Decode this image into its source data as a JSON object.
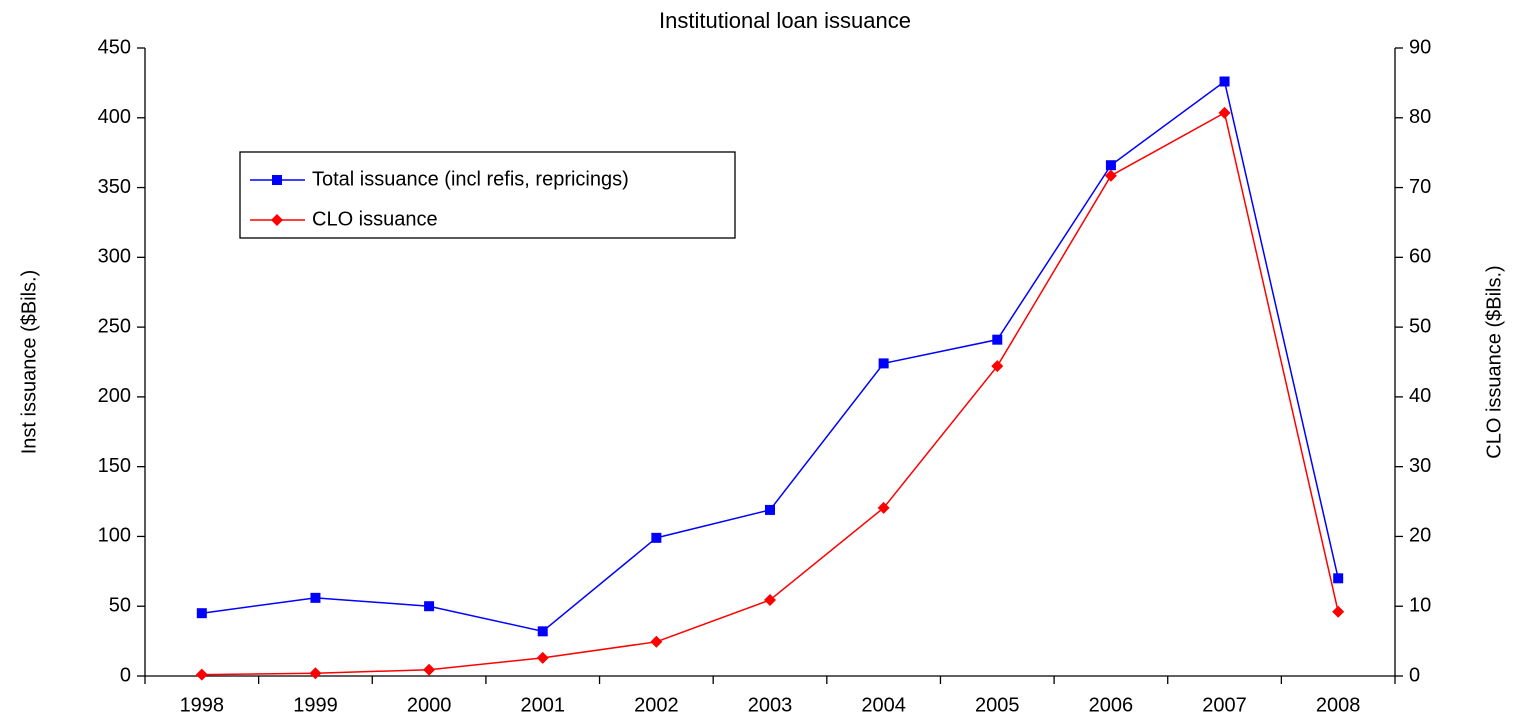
{
  "chart_data": {
    "type": "line",
    "title": "Institutional loan issuance",
    "y_label": "Inst issuance ($Bils.)",
    "y2_label": "CLO issuance ($Bils.)",
    "categories": [
      "1998",
      "1999",
      "2000",
      "2001",
      "2002",
      "2003",
      "2004",
      "2005",
      "2006",
      "2007",
      "2008"
    ],
    "series": [
      {
        "name": "Total issuance (incl refis, repricings)",
        "color": "#0000ff",
        "marker": "square",
        "values": [
          45,
          56,
          50,
          32,
          99,
          119,
          224,
          241,
          366,
          426,
          70
        ]
      },
      {
        "name": "CLO issuance",
        "color": "#ff0000",
        "marker": "diamond",
        "axis": "y2",
        "values": [
          0.2,
          0.4,
          0.9,
          2.6,
          4.9,
          10.9,
          24.1,
          44.4,
          71.7,
          80.7,
          9.2
        ]
      }
    ],
    "ylim": [
      0,
      450
    ],
    "yticks": [
      0,
      50,
      100,
      150,
      200,
      250,
      300,
      350,
      400,
      450
    ],
    "y2lim": [
      0,
      90
    ],
    "y2ticks": [
      0,
      10,
      20,
      30,
      40,
      50,
      60,
      70,
      80,
      90
    ],
    "grid": false
  }
}
